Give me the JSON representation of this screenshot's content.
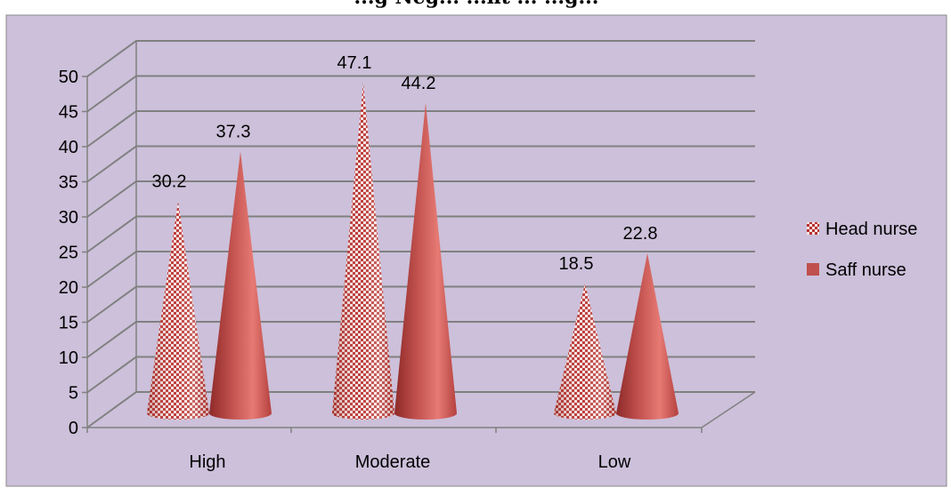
{
  "chart_data": {
    "type": "bar",
    "style": "3d-cone",
    "title": "...g Neg... ...nt ... ...g...",
    "categories": [
      "High",
      "Moderate",
      "Low"
    ],
    "series": [
      {
        "name": "Head nurse",
        "values": [
          30.2,
          47.1,
          18.5
        ],
        "color": "#c0504d",
        "pattern": "checkered"
      },
      {
        "name": "Saff nurse",
        "values": [
          37.3,
          44.2,
          22.8
        ],
        "color": "#c0504d",
        "pattern": "solid"
      }
    ],
    "ylim": [
      0,
      50
    ],
    "yticks": [
      "0",
      "5",
      "10",
      "15",
      "20",
      "25",
      "30",
      "35",
      "40",
      "45",
      "50"
    ],
    "data_labels": {
      "head": [
        "30.2",
        "47.1",
        "18.5"
      ],
      "staff": [
        "37.3",
        "44.2",
        "22.8"
      ]
    },
    "grid": true,
    "legend_position": "right",
    "background_color": "#ccc0da"
  }
}
